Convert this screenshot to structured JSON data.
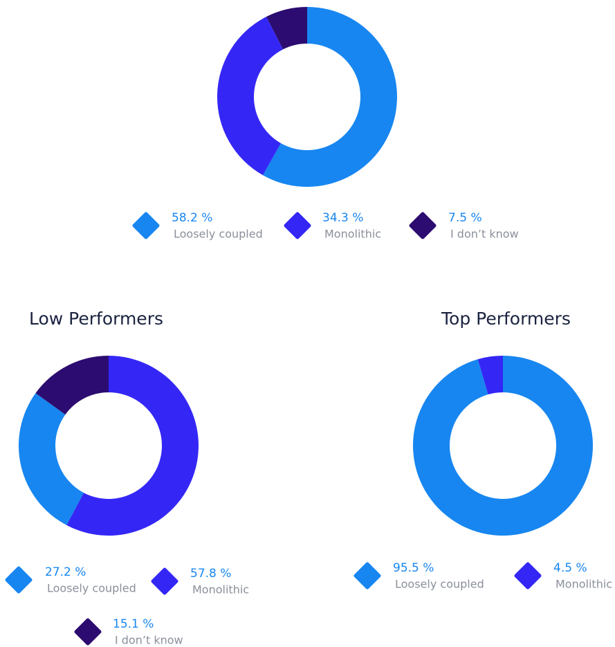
{
  "chart_data": [
    {
      "type": "pie",
      "donut": true,
      "categories": [
        "Loosely coupled",
        "Monolithic",
        "I don’t know"
      ],
      "values": [
        58.2,
        34.3,
        7.5
      ],
      "value_labels": [
        "58.2 %",
        "34.3 %",
        "7.5 %"
      ],
      "colors": [
        "#1786f0",
        "#3427f5",
        "#2c0c70"
      ]
    },
    {
      "type": "pie",
      "donut": true,
      "title": "Low Performers",
      "categories": [
        "Monolithic",
        "Loosely coupled",
        "I don’t know"
      ],
      "values": [
        57.8,
        27.2,
        15.1
      ],
      "value_labels": [
        "57.8 %",
        "27.2 %",
        "15.1 %"
      ],
      "colors": [
        "#3427f5",
        "#1786f0",
        "#2c0c70"
      ]
    },
    {
      "type": "pie",
      "donut": true,
      "title": "Top Performers",
      "categories": [
        "Loosely coupled",
        "Monolithic"
      ],
      "values": [
        95.5,
        4.5
      ],
      "value_labels": [
        "95.5 %",
        "4.5 %"
      ],
      "colors": [
        "#1786f0",
        "#3427f5"
      ]
    }
  ]
}
